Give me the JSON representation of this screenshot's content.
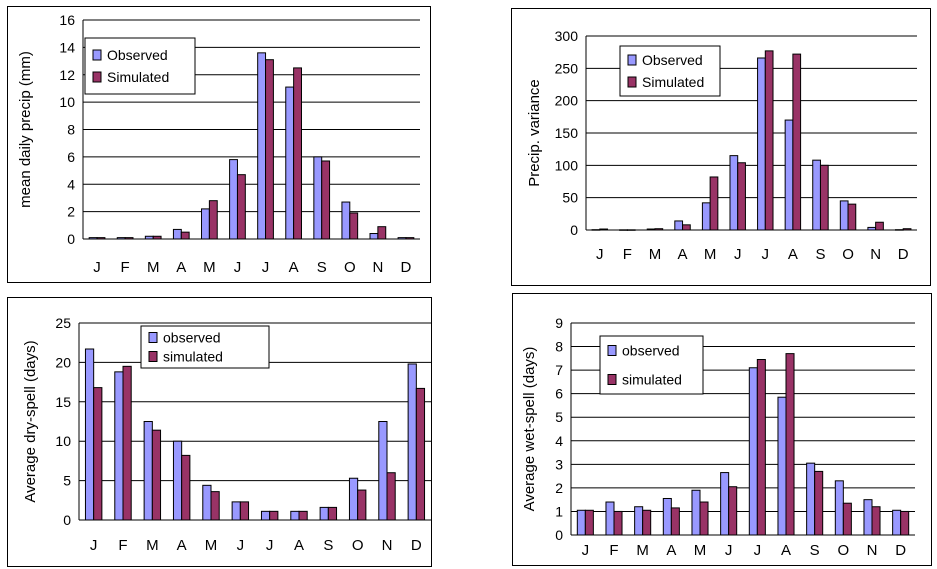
{
  "colors": {
    "observed": "#9999ff",
    "simulated": "#993366"
  },
  "chart_data": [
    {
      "type": "bar",
      "title": "",
      "xlabel": "",
      "ylabel": "mean daily precip (mm)",
      "ylim": [
        0,
        16
      ],
      "yticks": [
        "0",
        "2",
        "4",
        "6",
        "8",
        "10",
        "12",
        "14",
        "16"
      ],
      "categories": [
        "J",
        "F",
        "M",
        "A",
        "M",
        "J",
        "J",
        "A",
        "S",
        "O",
        "N",
        "D"
      ],
      "grid": true,
      "legend_position": "top-left",
      "series": [
        {
          "name": "Observed",
          "values": [
            0.1,
            0.1,
            0.2,
            0.7,
            2.2,
            5.8,
            13.6,
            11.1,
            6.0,
            2.7,
            0.4,
            0.1
          ]
        },
        {
          "name": "Simulated",
          "values": [
            0.1,
            0.1,
            0.2,
            0.5,
            2.8,
            4.7,
            13.1,
            12.5,
            5.7,
            1.9,
            0.9,
            0.1
          ]
        }
      ]
    },
    {
      "type": "bar",
      "title": "",
      "xlabel": "",
      "ylabel": "Precip. variance",
      "ylim": [
        0,
        300
      ],
      "yticks": [
        "0",
        "50",
        "100",
        "150",
        "200",
        "250",
        "300"
      ],
      "categories": [
        "J",
        "F",
        "M",
        "A",
        "M",
        "J",
        "J",
        "A",
        "S",
        "O",
        "N",
        "D"
      ],
      "grid": true,
      "legend_position": "top-left",
      "series": [
        {
          "name": "Observed",
          "values": [
            0.5,
            0.3,
            1.5,
            14,
            42,
            115,
            266,
            170,
            108,
            45,
            4,
            0.5
          ]
        },
        {
          "name": "Simulated",
          "values": [
            1.5,
            0.3,
            2,
            8,
            82,
            104,
            277,
            272,
            100,
            40,
            12,
            2
          ]
        }
      ]
    },
    {
      "type": "bar",
      "title": "",
      "xlabel": "",
      "ylabel": "Average dry-spell (days)",
      "ylim": [
        0,
        25
      ],
      "yticks": [
        "0",
        "5",
        "10",
        "15",
        "20",
        "25"
      ],
      "categories": [
        "J",
        "F",
        "M",
        "A",
        "M",
        "J",
        "J",
        "A",
        "S",
        "O",
        "N",
        "D"
      ],
      "grid": true,
      "legend_position": "top-center",
      "series": [
        {
          "name": "observed",
          "values": [
            21.7,
            18.8,
            12.5,
            10.0,
            4.4,
            2.3,
            1.1,
            1.1,
            1.6,
            5.3,
            12.5,
            19.8
          ]
        },
        {
          "name": "simulated",
          "values": [
            16.8,
            19.5,
            11.4,
            8.2,
            3.6,
            2.3,
            1.1,
            1.1,
            1.6,
            3.8,
            6.0,
            16.7
          ]
        }
      ]
    },
    {
      "type": "bar",
      "title": "",
      "xlabel": "",
      "ylabel": "Average wet-spell (days)",
      "ylim": [
        0,
        9
      ],
      "yticks": [
        "0",
        "1",
        "2",
        "3",
        "4",
        "5",
        "6",
        "7",
        "8",
        "9"
      ],
      "categories": [
        "J",
        "F",
        "M",
        "A",
        "M",
        "J",
        "J",
        "A",
        "S",
        "O",
        "N",
        "D"
      ],
      "grid": true,
      "legend_position": "top-left",
      "series": [
        {
          "name": "observed",
          "values": [
            1.05,
            1.4,
            1.2,
            1.55,
            1.9,
            2.65,
            7.1,
            5.85,
            3.05,
            2.3,
            1.5,
            1.05
          ]
        },
        {
          "name": "simulated",
          "values": [
            1.05,
            1.0,
            1.05,
            1.15,
            1.4,
            2.05,
            7.45,
            7.7,
            2.7,
            1.35,
            1.2,
            1.0
          ]
        }
      ]
    }
  ]
}
